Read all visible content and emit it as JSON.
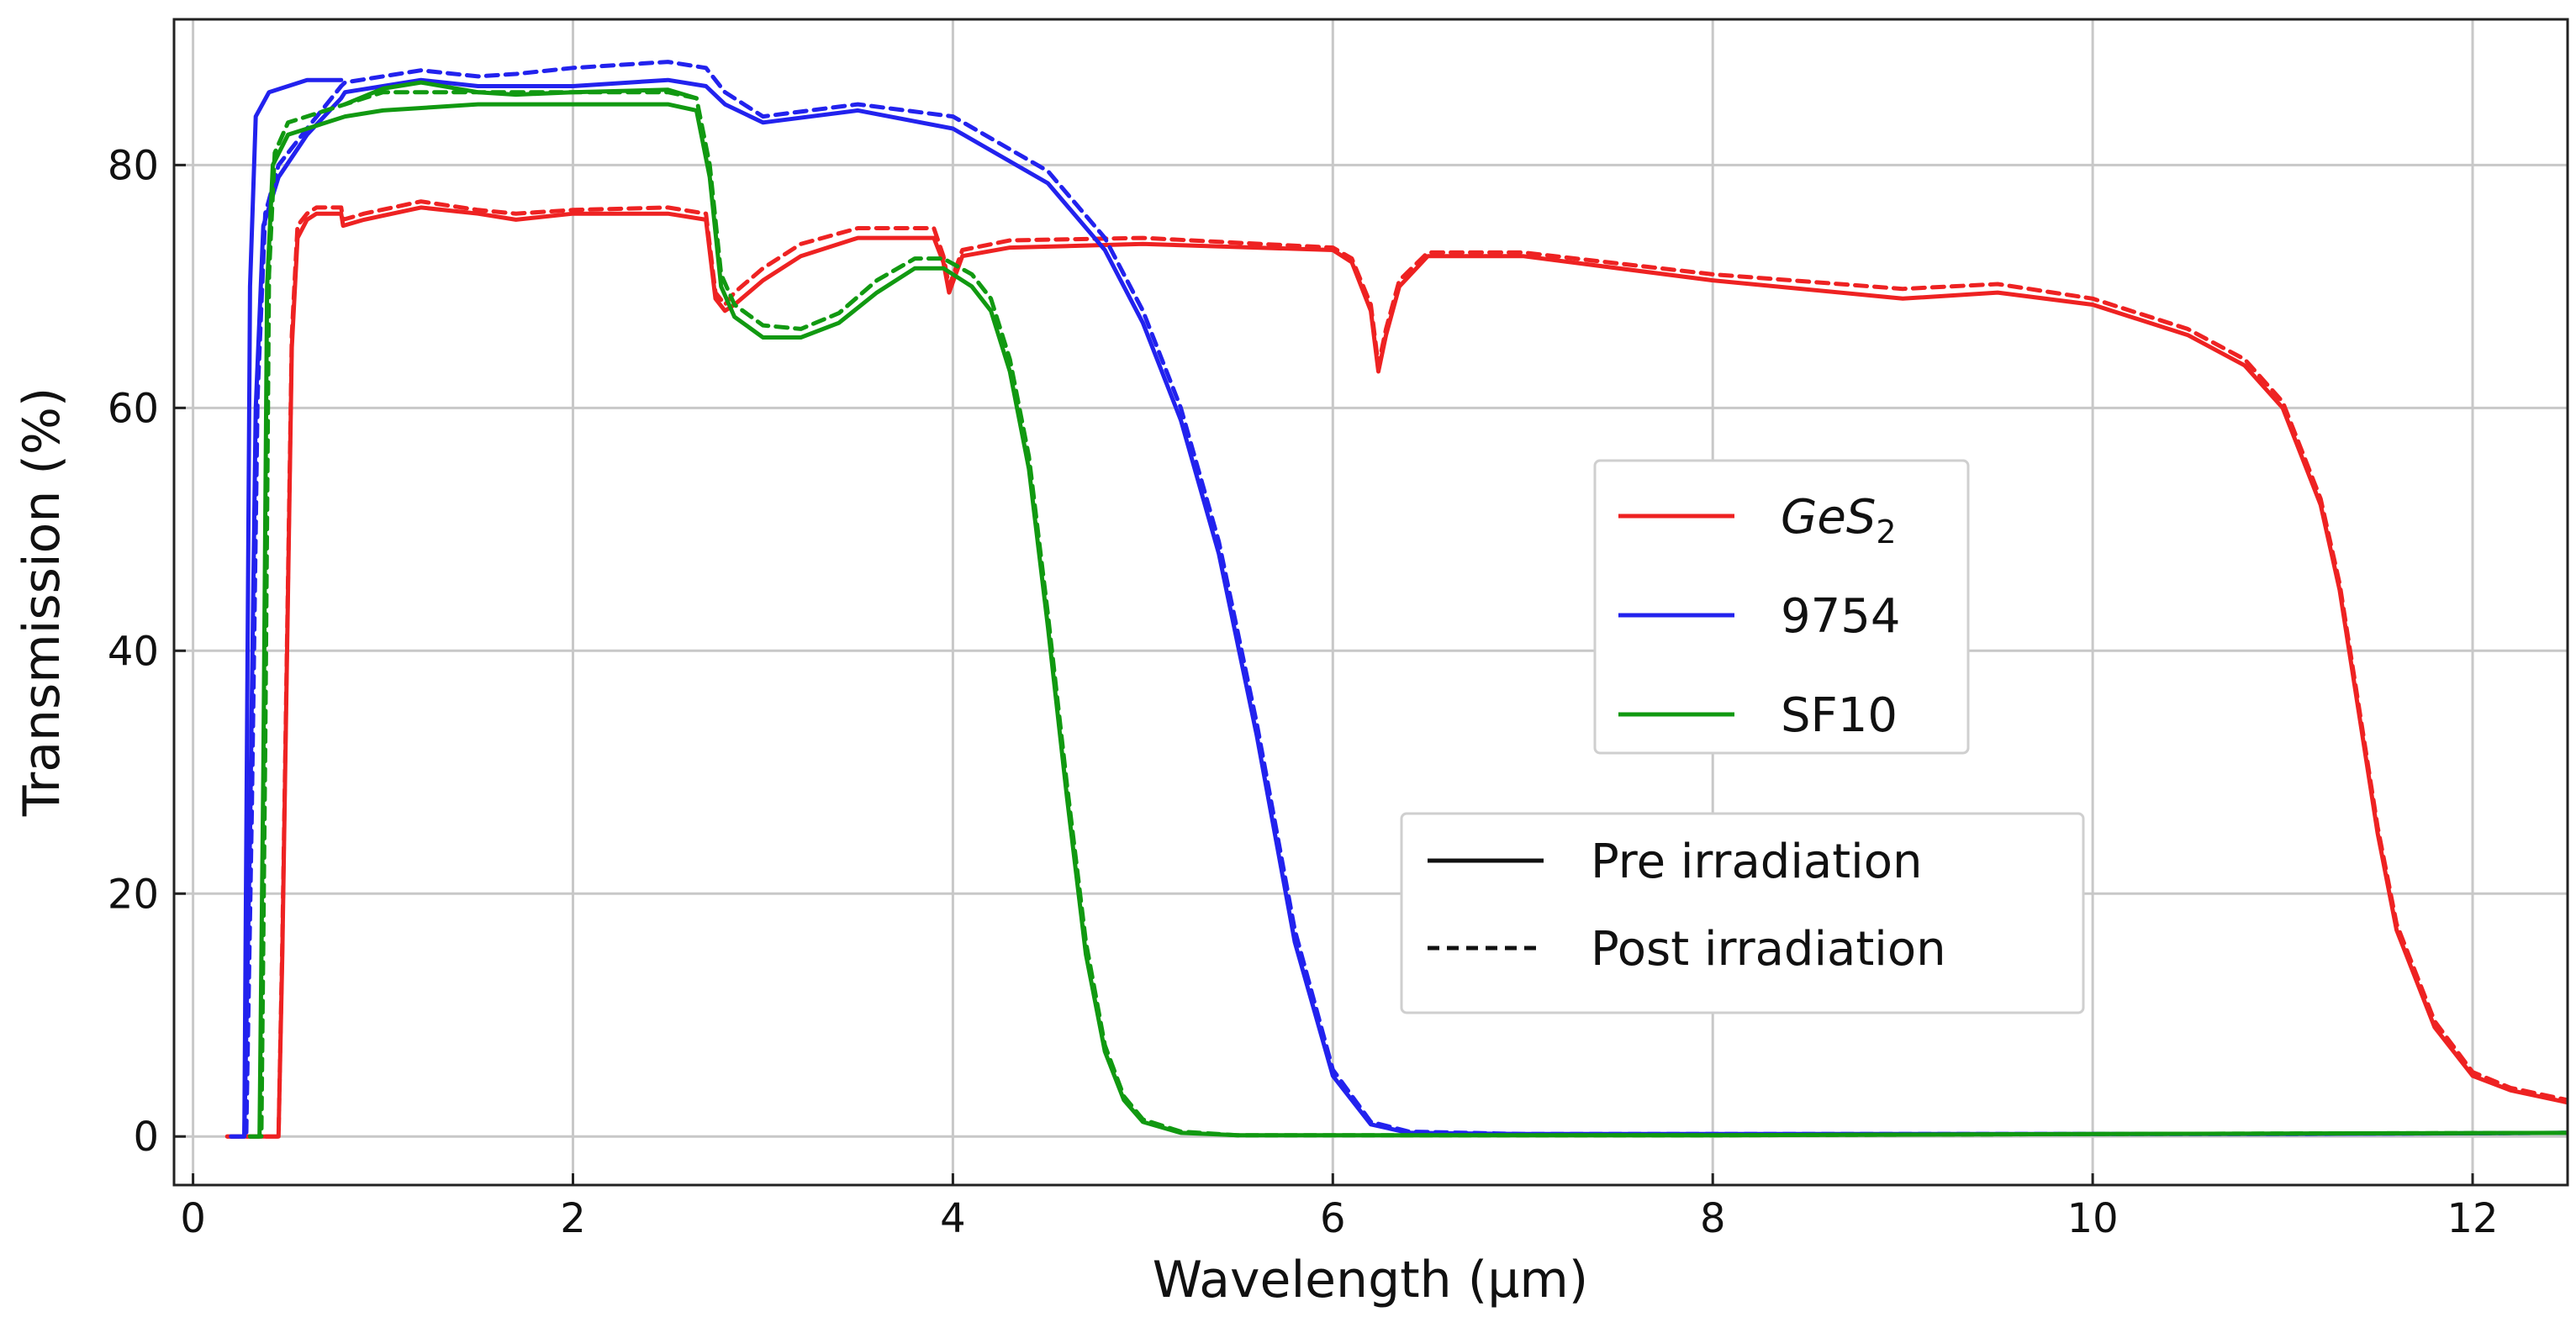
{
  "chart_data": {
    "type": "line",
    "title": "",
    "xlabel": "Wavelength (µm)",
    "ylabel": "Transmission (%)",
    "xlim": [
      -0.1,
      12.5
    ],
    "ylim": [
      -4,
      92
    ],
    "xticks": [
      0,
      2,
      4,
      6,
      8,
      10,
      12
    ],
    "yticks": [
      0,
      20,
      40,
      60,
      80
    ],
    "xtick_labels": [
      "0",
      "2",
      "4",
      "6",
      "8",
      "10",
      "12"
    ],
    "ytick_labels": [
      "0",
      "20",
      "40",
      "60",
      "80"
    ],
    "grid": true,
    "legend_materials": [
      {
        "label": "GeS",
        "subscript": "2",
        "color": "#ee2222"
      },
      {
        "label": "9754",
        "subscript": "",
        "color": "#2222ee"
      },
      {
        "label": "SF10",
        "subscript": "",
        "color": "#119911"
      }
    ],
    "legend_styles": [
      {
        "label": "Pre irradiation",
        "dash": "solid"
      },
      {
        "label": "Post irradiation",
        "dash": "dashed"
      }
    ],
    "series": [
      {
        "name": "GeS2 Pre irradiation",
        "color": "#ee2222",
        "dash": "solid",
        "x": [
          0.18,
          0.45,
          0.47,
          0.5,
          0.52,
          0.55,
          0.6,
          0.65,
          0.78,
          0.79,
          0.9,
          1.2,
          1.5,
          1.7,
          2.0,
          2.5,
          2.7,
          2.75,
          2.8,
          2.85,
          3.0,
          3.2,
          3.5,
          3.9,
          3.95,
          3.98,
          4.05,
          4.3,
          5.0,
          6.0,
          6.1,
          6.2,
          6.24,
          6.28,
          6.35,
          6.5,
          7.0,
          8.0,
          9.0,
          9.5,
          10.0,
          10.5,
          10.8,
          11.0,
          11.2,
          11.3,
          11.4,
          11.5,
          11.6,
          11.8,
          12.0,
          12.2,
          12.5
        ],
        "y": [
          0,
          0,
          15,
          45,
          65,
          74,
          75.5,
          76,
          76,
          75,
          75.5,
          76.5,
          76,
          75.5,
          76,
          76,
          75.5,
          69,
          68,
          68.5,
          70.5,
          72.5,
          74,
          74,
          72,
          69.5,
          72.5,
          73.2,
          73.5,
          73,
          72,
          68,
          63,
          66,
          70,
          72.5,
          72.5,
          70.5,
          69,
          69.5,
          68.5,
          66,
          63.5,
          60,
          52,
          45,
          35,
          25,
          17,
          9,
          5,
          3.8,
          2.8
        ]
      },
      {
        "name": "GeS2 Post irradiation",
        "color": "#ee2222",
        "dash": "dashed",
        "x": [
          0.18,
          0.45,
          0.47,
          0.5,
          0.52,
          0.55,
          0.6,
          0.65,
          0.78,
          0.79,
          0.9,
          1.2,
          1.5,
          1.7,
          2.0,
          2.5,
          2.7,
          2.75,
          2.8,
          2.85,
          3.0,
          3.2,
          3.5,
          3.9,
          3.95,
          3.98,
          4.05,
          4.3,
          5.0,
          6.0,
          6.1,
          6.2,
          6.24,
          6.28,
          6.35,
          6.5,
          7.0,
          8.0,
          9.0,
          9.5,
          10.0,
          10.5,
          10.8,
          11.0,
          11.2,
          11.3,
          11.4,
          11.5,
          11.6,
          11.8,
          12.0,
          12.2,
          12.5
        ],
        "y": [
          0,
          0,
          16,
          46,
          66,
          75,
          76,
          76.5,
          76.5,
          75.5,
          76,
          77,
          76.3,
          76,
          76.3,
          76.5,
          76,
          69.5,
          68.5,
          69.5,
          71.5,
          73.5,
          74.8,
          74.8,
          72.5,
          70,
          73,
          73.8,
          74,
          73.2,
          72.3,
          68.5,
          63.5,
          66.5,
          70.5,
          72.8,
          72.8,
          71,
          69.8,
          70.2,
          69,
          66.5,
          64,
          60.5,
          52.5,
          45.5,
          35.5,
          25.5,
          17.5,
          9.5,
          5.3,
          4,
          3
        ]
      },
      {
        "name": "9754 Pre irradiation",
        "color": "#2222ee",
        "dash": "solid",
        "x": [
          0.2,
          0.27,
          0.3,
          0.33,
          0.37,
          0.45,
          0.6,
          0.78,
          0.8,
          1.0,
          1.2,
          1.5,
          1.7,
          2.0,
          2.5,
          2.7,
          2.8,
          3.0,
          3.5,
          4.0,
          4.5,
          4.8,
          5.0,
          5.2,
          5.4,
          5.6,
          5.8,
          6.0,
          6.2,
          6.4,
          7.0,
          9.0,
          11.0,
          12.5
        ],
        "y": [
          0,
          0,
          25,
          60,
          75,
          79,
          82.5,
          85.5,
          86,
          86.5,
          87,
          86.5,
          86.5,
          86.5,
          87,
          86.5,
          85,
          83.5,
          84.5,
          83,
          78.5,
          73,
          67,
          59,
          48,
          33,
          16,
          5,
          1,
          0.3,
          0.2,
          0.2,
          0.2,
          0.3
        ]
      },
      {
        "name": "9754 Post irradiation",
        "color": "#2222ee",
        "dash": "dashed",
        "x": [
          0.2,
          0.28,
          0.31,
          0.34,
          0.38,
          0.45,
          0.6,
          0.78,
          0.8,
          1.0,
          1.2,
          1.5,
          1.7,
          2.0,
          2.5,
          2.7,
          2.8,
          3.0,
          3.5,
          4.0,
          4.5,
          4.8,
          5.0,
          5.2,
          5.4,
          5.6,
          5.8,
          6.0,
          6.2,
          6.4,
          7.0,
          9.0,
          11.0,
          12.5
        ],
        "y": [
          0,
          0,
          27,
          61,
          76,
          80,
          83,
          86.5,
          86.8,
          87.3,
          87.8,
          87.3,
          87.5,
          88,
          88.5,
          88,
          86,
          84,
          85,
          84,
          79.5,
          74,
          68,
          60,
          49,
          34,
          17,
          5.5,
          1.2,
          0.4,
          0.2,
          0.2,
          0.2,
          0.3
        ]
      },
      {
        "name": "9754 Step Pre",
        "color": "#2222ee",
        "dash": "solid",
        "x": [
          0.27,
          0.3,
          0.33,
          0.4,
          0.6,
          0.78
        ],
        "y": [
          0,
          70,
          84,
          86,
          87,
          87
        ]
      },
      {
        "name": "SF10 Pre irradiation",
        "color": "#119911",
        "dash": "solid",
        "x": [
          0.3,
          0.35,
          0.37,
          0.39,
          0.42,
          0.5,
          0.8,
          1.0,
          1.5,
          2.0,
          2.5,
          2.65,
          2.72,
          2.78,
          2.85,
          3.0,
          3.2,
          3.4,
          3.6,
          3.8,
          3.95,
          4.1,
          4.2,
          4.3,
          4.4,
          4.5,
          4.6,
          4.7,
          4.8,
          4.9,
          5.0,
          5.2,
          5.5,
          6.0,
          8.0,
          10.0,
          12.5
        ],
        "y": [
          0,
          0,
          30,
          70,
          80,
          82.5,
          84,
          84.5,
          85,
          85,
          85,
          84.5,
          79,
          70,
          67.5,
          65.8,
          65.8,
          67,
          69.5,
          71.5,
          71.5,
          70,
          68,
          63,
          55,
          42,
          28,
          15,
          7,
          3,
          1.2,
          0.3,
          0.1,
          0.1,
          0.1,
          0.2,
          0.3
        ]
      },
      {
        "name": "SF10 Post irradiation",
        "color": "#119911",
        "dash": "dashed",
        "x": [
          0.3,
          0.36,
          0.38,
          0.4,
          0.43,
          0.5,
          0.8,
          1.0,
          1.5,
          2.0,
          2.5,
          2.65,
          2.72,
          2.78,
          2.85,
          3.0,
          3.2,
          3.4,
          3.6,
          3.8,
          3.95,
          4.1,
          4.2,
          4.3,
          4.4,
          4.5,
          4.6,
          4.7,
          4.8,
          4.9,
          5.0,
          5.2,
          5.5,
          6.0,
          8.0,
          10.0,
          12.5
        ],
        "y": [
          0,
          0,
          32,
          71,
          81,
          83.5,
          85,
          86,
          86,
          86,
          86,
          85.5,
          80,
          71,
          68.5,
          66.8,
          66.5,
          67.8,
          70.5,
          72.3,
          72.3,
          71,
          69,
          64,
          56,
          43,
          29,
          16,
          7.5,
          3.3,
          1.4,
          0.4,
          0.1,
          0.1,
          0.1,
          0.2,
          0.3
        ]
      },
      {
        "name": "SF10 Upper Pre",
        "color": "#119911",
        "dash": "solid",
        "x": [
          0.8,
          1.0,
          1.2,
          1.5,
          1.7,
          2.0,
          2.5,
          2.65
        ],
        "y": [
          85,
          86.3,
          86.8,
          86,
          85.8,
          86,
          86.2,
          85.5
        ]
      }
    ]
  }
}
